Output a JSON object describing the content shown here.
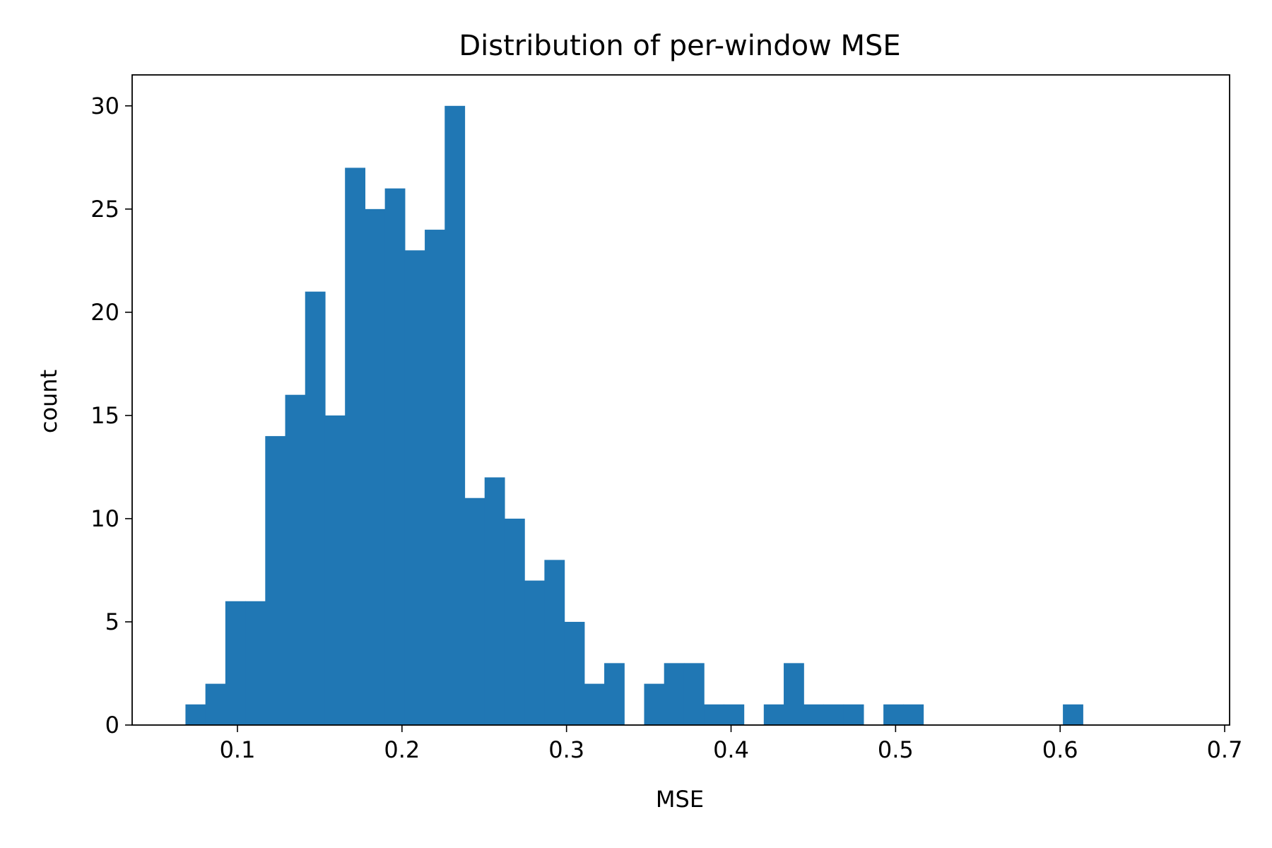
{
  "chart_data": {
    "type": "bar",
    "title": "Distribution of per-window MSE",
    "xlabel": "MSE",
    "ylabel": "count",
    "xlim": [
      0.036,
      0.703
    ],
    "ylim": [
      0,
      31.5
    ],
    "xticks": [
      0.1,
      0.2,
      0.3,
      0.4,
      0.5,
      0.6,
      0.7
    ],
    "xtick_labels": [
      "0.1",
      "0.2",
      "0.3",
      "0.4",
      "0.5",
      "0.6",
      "0.7"
    ],
    "yticks": [
      0,
      5,
      10,
      15,
      20,
      25,
      30
    ],
    "ytick_labels": [
      "0",
      "5",
      "10",
      "15",
      "20",
      "25",
      "30"
    ],
    "grid": false,
    "color": "#2077b4",
    "bin_start": 0.0684,
    "bin_width": 0.01212,
    "counts": [
      1,
      2,
      6,
      6,
      14,
      16,
      21,
      15,
      27,
      25,
      26,
      23,
      24,
      30,
      11,
      12,
      10,
      7,
      8,
      5,
      2,
      3,
      0,
      2,
      3,
      3,
      1,
      1,
      0,
      1,
      3,
      1,
      1,
      1,
      0,
      1,
      1,
      0,
      0,
      0,
      0,
      0,
      0,
      0,
      1,
      0,
      0,
      0,
      0,
      0
    ]
  }
}
